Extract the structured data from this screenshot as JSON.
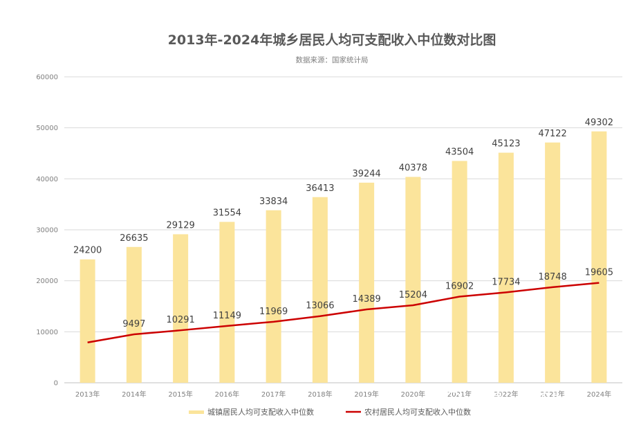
{
  "chart_data": {
    "type": "bar",
    "title": "2013年-2024年城乡居民人均可支配收入中位数对比图",
    "subtitle": "数据来源：国家统计局",
    "categories": [
      "2013年",
      "2014年",
      "2015年",
      "2016年",
      "2017年",
      "2018年",
      "2019年",
      "2020年",
      "2021年",
      "2022年",
      "2023年",
      "2024年"
    ],
    "ylim": [
      0,
      60000
    ],
    "yticks": [
      0,
      10000,
      20000,
      30000,
      40000,
      50000,
      60000
    ],
    "ytick_labels": [
      "0",
      "10000",
      "20000",
      "30000",
      "40000",
      "50000",
      "60000"
    ],
    "grid": true,
    "legend_position": "bottom",
    "series": [
      {
        "name": "城镇居民人均可支配收入中位数",
        "type": "bar",
        "color": "#fbe49b",
        "values": [
          24200,
          26635,
          29129,
          31554,
          33834,
          36413,
          39244,
          40378,
          43504,
          45123,
          47122,
          49302
        ],
        "labels": [
          "24200",
          "26635",
          "29129",
          "31554",
          "33834",
          "36413",
          "39244",
          "40378",
          "43504",
          "45123",
          "47122",
          "49302"
        ]
      },
      {
        "name": "农村居民人均可支配收入中位数",
        "type": "line",
        "color": "#cc0000",
        "values": [
          7907,
          9497,
          10291,
          11149,
          11969,
          13066,
          14389,
          15204,
          16902,
          17734,
          18748,
          19605
        ],
        "labels": [
          "",
          "9497",
          "10291",
          "11149",
          "11969",
          "13066",
          "14389",
          "15204",
          "16902",
          "17734",
          "18748",
          "19605"
        ]
      }
    ]
  },
  "watermark": {
    "text": "公众号 · 公民马小白"
  }
}
